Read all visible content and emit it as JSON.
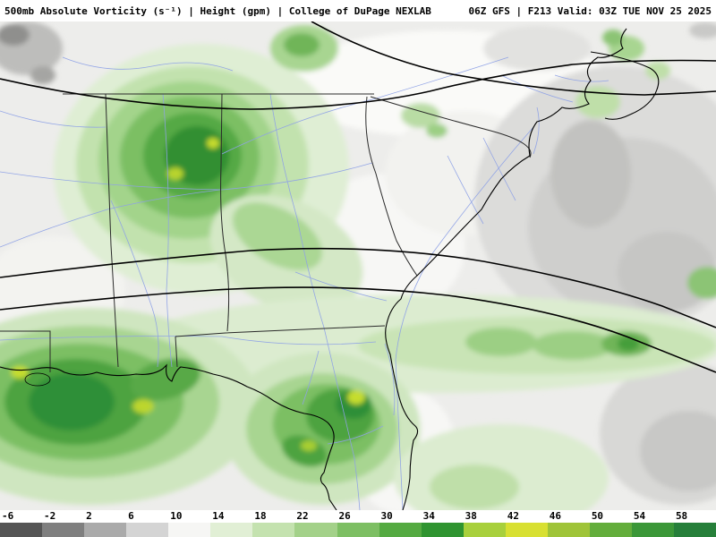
{
  "header": {
    "left_title": "500mb Absolute Vorticity (s⁻¹) | Height (gpm) | College of DuPage NEXLAB",
    "right_title": "06Z GFS | F213 Valid: 03Z TUE NOV 25 2025"
  },
  "colorbar": {
    "ticks": [
      "-6",
      "-2",
      "2",
      "6",
      "10",
      "14",
      "18",
      "22",
      "26",
      "30",
      "34",
      "38",
      "42",
      "46",
      "50",
      "54",
      "58"
    ],
    "colors": [
      "#555555",
      "#7f7f7f",
      "#aaaaaa",
      "#d4d4d4",
      "#f6f6f4",
      "#e1efd5",
      "#c4e2af",
      "#a3d189",
      "#7dbf63",
      "#54aa41",
      "#2f9430",
      "#a8d03c",
      "#d8e032",
      "#9fc438",
      "#63ad3b",
      "#3b9738",
      "#267f3a"
    ]
  }
}
